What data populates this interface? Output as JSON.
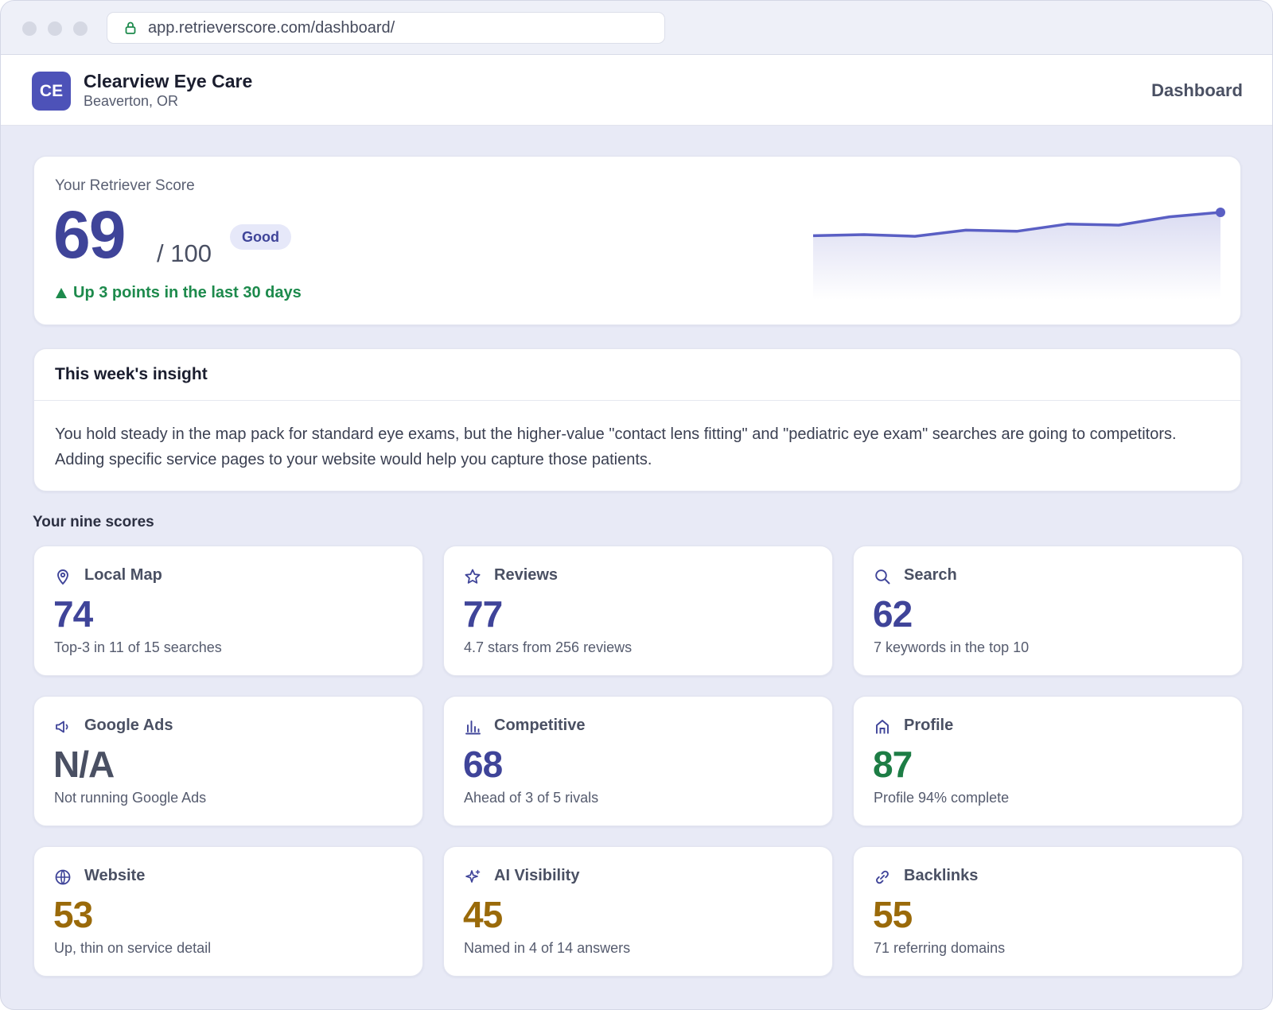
{
  "browser": {
    "url": "app.retrieverscore.com/dashboard/"
  },
  "header": {
    "avatar_initials": "CE",
    "business_name": "Clearview Eye Care",
    "location": "Beaverton, OR",
    "nav_label": "Dashboard"
  },
  "score": {
    "label": "Your Retriever Score",
    "value": "69",
    "out_of": "/ 100",
    "badge": "Good",
    "trend": "Up 3 points in the last 30 days",
    "sparkline": [
      0.58,
      0.6,
      0.57,
      0.68,
      0.66,
      0.79,
      0.77,
      0.92,
      1.0
    ],
    "accent_color": "#5a5fc4"
  },
  "insight": {
    "title": "This week's insight",
    "text": "You hold steady in the map pack for standard eye exams, but the higher-value \"contact lens fitting\" and \"pediatric eye exam\" searches are going to competitors. Adding specific service pages to your website would help you capture those patients."
  },
  "scores_section": {
    "title": "Your nine scores",
    "items": [
      {
        "name": "Local Map",
        "value": "74",
        "desc": "Top-3 in 11 of 15 searches",
        "icon": "map-pin-icon",
        "tone": "blue"
      },
      {
        "name": "Reviews",
        "value": "77",
        "desc": "4.7 stars from 256 reviews",
        "icon": "star-icon",
        "tone": "blue"
      },
      {
        "name": "Search",
        "value": "62",
        "desc": "7 keywords in the top 10",
        "icon": "search-icon",
        "tone": "blue"
      },
      {
        "name": "Google Ads",
        "value": "N/A",
        "desc": "Not running Google Ads",
        "icon": "megaphone-icon",
        "tone": "gray"
      },
      {
        "name": "Competitive",
        "value": "68",
        "desc": "Ahead of 3 of 5 rivals",
        "icon": "bar-chart-icon",
        "tone": "blue"
      },
      {
        "name": "Profile",
        "value": "87",
        "desc": "Profile 94% complete",
        "icon": "storefront-icon",
        "tone": "green"
      },
      {
        "name": "Website",
        "value": "53",
        "desc": "Up, thin on service detail",
        "icon": "globe-icon",
        "tone": "amber"
      },
      {
        "name": "AI Visibility",
        "value": "45",
        "desc": "Named in 4 of 14 answers",
        "icon": "sparkle-icon",
        "tone": "amber"
      },
      {
        "name": "Backlinks",
        "value": "55",
        "desc": "71 referring domains",
        "icon": "link-icon",
        "tone": "amber"
      }
    ]
  }
}
